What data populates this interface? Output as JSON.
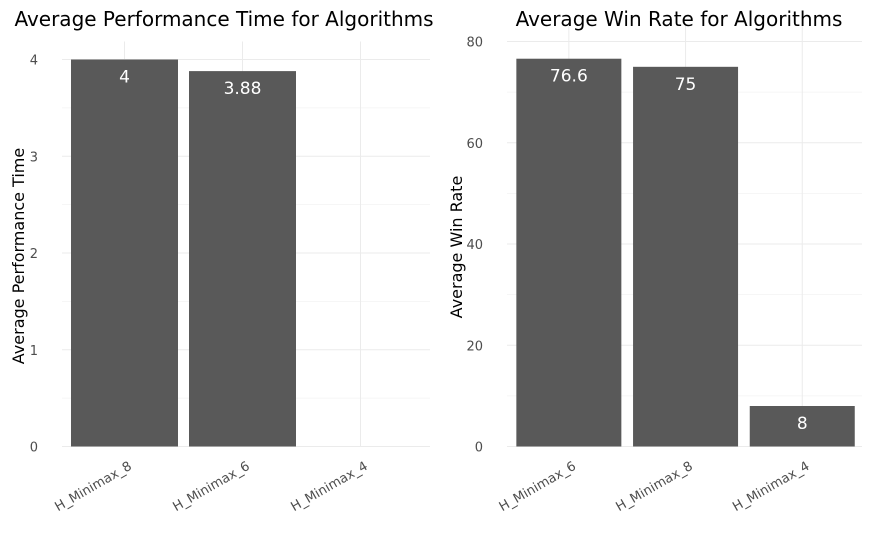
{
  "chart_data": [
    {
      "type": "bar",
      "title": "Average Performance Time for Algorithms",
      "xlabel": "",
      "ylabel": "Average Performance Time",
      "categories": [
        "H_Minimax_8",
        "H_Minimax_6",
        "H_Minimax_4"
      ],
      "values": [
        4,
        3.88,
        0
      ],
      "data_labels": [
        "4",
        "3.88",
        ""
      ],
      "ylim": [
        0,
        4
      ],
      "yticks": [
        0,
        1,
        2,
        3,
        4
      ],
      "grid": true,
      "bar_color": "#595959"
    },
    {
      "type": "bar",
      "title": "Average Win Rate for Algorithms",
      "xlabel": "",
      "ylabel": "Average Win Rate",
      "categories": [
        "H_Minimax_6",
        "H_Minimax_8",
        "H_Minimax_4"
      ],
      "values": [
        76.6,
        75,
        8
      ],
      "data_labels": [
        "76.6",
        "75",
        "8"
      ],
      "ylim": [
        0,
        80
      ],
      "yticks": [
        0,
        20,
        40,
        60,
        80
      ],
      "grid": true,
      "bar_color": "#595959"
    }
  ]
}
